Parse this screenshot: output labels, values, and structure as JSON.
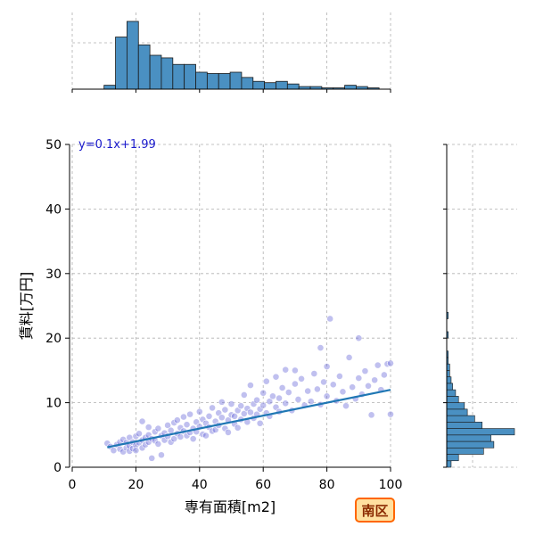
{
  "chart_data": {
    "type": "scatter",
    "title": "",
    "xlabel": "専有面積[m2]",
    "ylabel": "賃料[万円]",
    "xlim": [
      0,
      100
    ],
    "ylim": [
      0,
      50
    ],
    "x_ticks": [
      0,
      20,
      40,
      60,
      80,
      100
    ],
    "y_ticks": [
      0,
      10,
      20,
      30,
      40,
      50
    ],
    "x_tick_labels": [
      "0",
      "20",
      "40",
      "60",
      "80",
      "100"
    ],
    "y_tick_labels": [
      "0",
      "10",
      "20",
      "30",
      "40",
      "50"
    ],
    "grid": true,
    "colors": {
      "points": "#6a6ad8",
      "regression": "#1f77b4",
      "hist_fill": "#4a90c2",
      "grid": "#b0b0b0",
      "badge_fill": "#ffe0a0",
      "badge_border": "#ff6600"
    },
    "regression": {
      "equation": "y=0.1x+1.99",
      "slope": 0.1,
      "intercept": 1.99,
      "x_range": [
        11,
        100
      ]
    },
    "badge": "南区",
    "points": [
      [
        11,
        3.7
      ],
      [
        12,
        3.2
      ],
      [
        13,
        2.6
      ],
      [
        14,
        3.5
      ],
      [
        15,
        2.8
      ],
      [
        15,
        3.9
      ],
      [
        16,
        2.4
      ],
      [
        16,
        4.3
      ],
      [
        17,
        3.0
      ],
      [
        17,
        3.8
      ],
      [
        18,
        2.5
      ],
      [
        18,
        4.6
      ],
      [
        18,
        3.3
      ],
      [
        19,
        3.9
      ],
      [
        19,
        2.9
      ],
      [
        20,
        4.8
      ],
      [
        20,
        3.4
      ],
      [
        20,
        2.6
      ],
      [
        21,
        5.2
      ],
      [
        21,
        3.8
      ],
      [
        22,
        4.2
      ],
      [
        22,
        3.0
      ],
      [
        22,
        7.1
      ],
      [
        23,
        4.6
      ],
      [
        23,
        3.5
      ],
      [
        24,
        5.0
      ],
      [
        24,
        3.9
      ],
      [
        24,
        6.2
      ],
      [
        25,
        4.4
      ],
      [
        25,
        1.4
      ],
      [
        26,
        5.5
      ],
      [
        26,
        4.1
      ],
      [
        27,
        3.6
      ],
      [
        27,
        6.0
      ],
      [
        28,
        4.9
      ],
      [
        28,
        1.9
      ],
      [
        29,
        5.3
      ],
      [
        29,
        4.2
      ],
      [
        30,
        6.5
      ],
      [
        30,
        4.8
      ],
      [
        31,
        3.9
      ],
      [
        31,
        5.7
      ],
      [
        32,
        4.4
      ],
      [
        32,
        6.9
      ],
      [
        33,
        5.2
      ],
      [
        33,
        7.3
      ],
      [
        34,
        4.7
      ],
      [
        34,
        6.1
      ],
      [
        35,
        5.6
      ],
      [
        35,
        7.8
      ],
      [
        36,
        4.9
      ],
      [
        36,
        6.6
      ],
      [
        37,
        5.4
      ],
      [
        37,
        8.2
      ],
      [
        38,
        6.0
      ],
      [
        38,
        4.4
      ],
      [
        39,
        7.0
      ],
      [
        39,
        5.5
      ],
      [
        40,
        6.3
      ],
      [
        40,
        8.6
      ],
      [
        41,
        5.1
      ],
      [
        41,
        7.4
      ],
      [
        42,
        6.8
      ],
      [
        42,
        4.9
      ],
      [
        43,
        7.9
      ],
      [
        43,
        6.2
      ],
      [
        44,
        5.6
      ],
      [
        44,
        9.2
      ],
      [
        45,
        7.1
      ],
      [
        45,
        5.8
      ],
      [
        46,
        8.4
      ],
      [
        46,
        6.5
      ],
      [
        47,
        7.7
      ],
      [
        47,
        10.1
      ],
      [
        48,
        6.0
      ],
      [
        48,
        8.9
      ],
      [
        49,
        7.3
      ],
      [
        49,
        5.4
      ],
      [
        50,
        8.1
      ],
      [
        50,
        9.8
      ],
      [
        51,
        6.7
      ],
      [
        51,
        7.9
      ],
      [
        52,
        8.8
      ],
      [
        52,
        6.1
      ],
      [
        53,
        9.5
      ],
      [
        53,
        7.4
      ],
      [
        54,
        8.3
      ],
      [
        54,
        11.2
      ],
      [
        55,
        7.0
      ],
      [
        55,
        9.1
      ],
      [
        56,
        8.5
      ],
      [
        56,
        12.7
      ],
      [
        57,
        9.8
      ],
      [
        57,
        7.6
      ],
      [
        58,
        10.4
      ],
      [
        58,
        8.2
      ],
      [
        59,
        9.0
      ],
      [
        59,
        6.8
      ],
      [
        60,
        9.6
      ],
      [
        60,
        11.5
      ],
      [
        61,
        8.4
      ],
      [
        61,
        13.3
      ],
      [
        62,
        10.2
      ],
      [
        62,
        7.9
      ],
      [
        63,
        11.0
      ],
      [
        64,
        9.3
      ],
      [
        64,
        14.0
      ],
      [
        65,
        10.7
      ],
      [
        65,
        8.6
      ],
      [
        66,
        12.3
      ],
      [
        67,
        9.9
      ],
      [
        67,
        15.1
      ],
      [
        68,
        11.6
      ],
      [
        69,
        8.8
      ],
      [
        70,
        12.9
      ],
      [
        70,
        15.0
      ],
      [
        71,
        10.5
      ],
      [
        72,
        13.7
      ],
      [
        73,
        9.6
      ],
      [
        74,
        11.8
      ],
      [
        75,
        10.2
      ],
      [
        76,
        14.5
      ],
      [
        77,
        12.1
      ],
      [
        78,
        9.7
      ],
      [
        78,
        18.5
      ],
      [
        79,
        13.2
      ],
      [
        80,
        11.0
      ],
      [
        80,
        15.6
      ],
      [
        81,
        23.0
      ],
      [
        82,
        12.8
      ],
      [
        83,
        10.3
      ],
      [
        84,
        14.1
      ],
      [
        85,
        11.7
      ],
      [
        86,
        9.5
      ],
      [
        87,
        17.0
      ],
      [
        88,
        12.4
      ],
      [
        89,
        10.6
      ],
      [
        90,
        13.8
      ],
      [
        90,
        20.0
      ],
      [
        91,
        11.3
      ],
      [
        92,
        14.9
      ],
      [
        93,
        12.6
      ],
      [
        94,
        8.1
      ],
      [
        95,
        13.5
      ],
      [
        96,
        15.8
      ],
      [
        97,
        12.0
      ],
      [
        98,
        14.3
      ],
      [
        99,
        16.0
      ],
      [
        100,
        8.2
      ],
      [
        100,
        16.1
      ]
    ],
    "x_hist": {
      "bin_edges": [
        10,
        13.6,
        17.2,
        20.8,
        24.4,
        28,
        31.6,
        35.2,
        38.8,
        42.4,
        46,
        49.6,
        53.2,
        56.8,
        60.4,
        64,
        67.6,
        71.2,
        74.8,
        78.4,
        82,
        85.6,
        89.2,
        92.8,
        96.4,
        100
      ],
      "counts": [
        3,
        40,
        52,
        34,
        26,
        24,
        19,
        19,
        13,
        12,
        12,
        13,
        9,
        6,
        5,
        6,
        4,
        2,
        2,
        1,
        1,
        3,
        2,
        1,
        0
      ]
    },
    "y_hist": {
      "bin_edges": [
        0,
        1,
        2,
        3,
        4,
        5,
        6,
        7,
        8,
        9,
        10,
        11,
        12,
        13,
        14,
        15,
        16,
        17,
        18,
        19,
        20,
        21,
        22,
        23,
        24
      ],
      "counts": [
        3,
        8,
        25,
        32,
        30,
        46,
        24,
        19,
        14,
        12,
        8,
        6,
        4,
        3,
        2,
        2,
        1,
        1,
        0,
        0,
        1,
        0,
        0,
        1
      ]
    }
  }
}
